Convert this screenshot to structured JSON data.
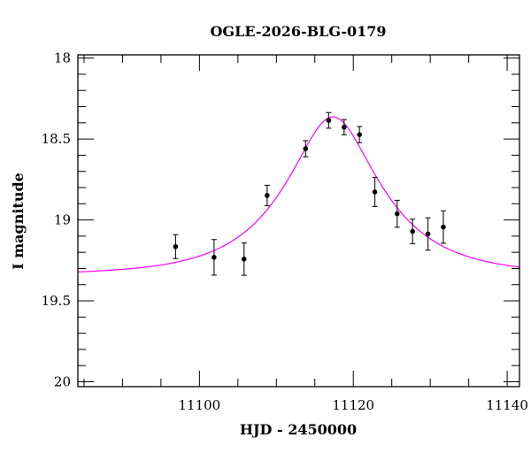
{
  "chart_data": {
    "type": "scatter",
    "title": "OGLE-2026-BLG-0179",
    "xlabel": "HJD - 2450000",
    "ylabel": "I magnitude",
    "xlim": [
      11084.2,
      11141.6
    ],
    "ylim": [
      20.03,
      17.98
    ],
    "y_inverted": true,
    "x_major_ticks": [
      11100,
      11120,
      11140
    ],
    "x_tick_labels": [
      "11100",
      "11120",
      "11140"
    ],
    "x_minor_step": 5,
    "y_major_ticks": [
      18,
      18.5,
      19,
      19.5,
      20
    ],
    "y_tick_labels": [
      "18",
      "18.5",
      "19",
      "19.5",
      "20"
    ],
    "y_minor_step": 0.1,
    "grid": false,
    "points": [
      {
        "x": 11096.9,
        "y": 19.165,
        "err": 0.074
      },
      {
        "x": 11101.9,
        "y": 19.231,
        "err": 0.11
      },
      {
        "x": 11105.8,
        "y": 19.242,
        "err": 0.1
      },
      {
        "x": 11108.8,
        "y": 18.849,
        "err": 0.063
      },
      {
        "x": 11113.8,
        "y": 18.56,
        "err": 0.05
      },
      {
        "x": 11116.8,
        "y": 18.385,
        "err": 0.048
      },
      {
        "x": 11118.8,
        "y": 18.427,
        "err": 0.047
      },
      {
        "x": 11120.8,
        "y": 18.473,
        "err": 0.05
      },
      {
        "x": 11122.8,
        "y": 18.827,
        "err": 0.09
      },
      {
        "x": 11125.7,
        "y": 18.962,
        "err": 0.083
      },
      {
        "x": 11127.7,
        "y": 19.071,
        "err": 0.076
      },
      {
        "x": 11129.7,
        "y": 19.087,
        "err": 0.1
      },
      {
        "x": 11131.7,
        "y": 19.044,
        "err": 0.1
      }
    ],
    "model": {
      "type": "Paczynski point-lens fit",
      "t0": 11117.35,
      "u0": 0.435,
      "tE": 11.3,
      "baseline_mag": 19.34,
      "color": "#ff00ff"
    },
    "point_color": "#000000"
  }
}
